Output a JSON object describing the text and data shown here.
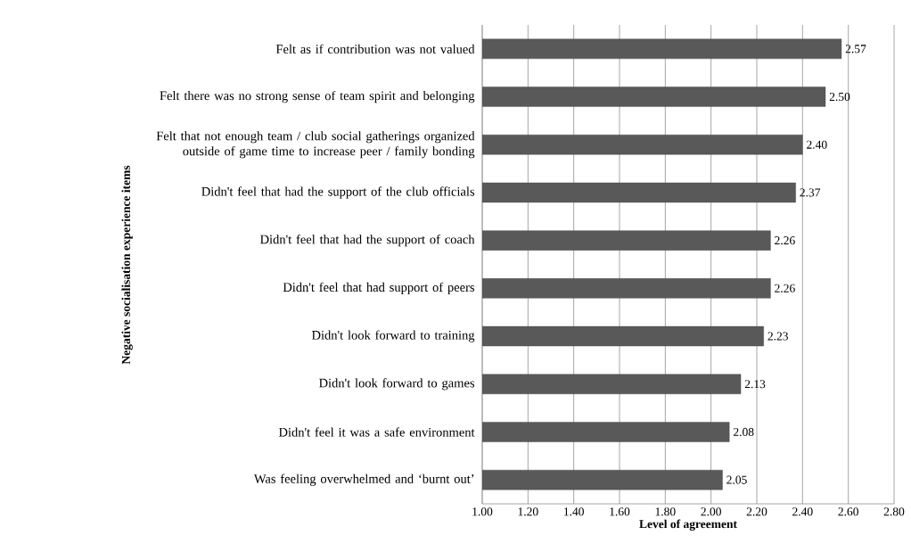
{
  "chart_data": {
    "type": "bar",
    "orientation": "horizontal",
    "categories": [
      "Felt as if contribution was not valued",
      "Felt there was no strong sense of team spirit and belonging",
      "Felt that not enough team / club social gatherings organized outside of game time to increase peer / family bonding",
      "Didn't feel that had the support of the club officials",
      "Didn't feel that had the support of coach",
      "Didn't feel that had support of peers",
      "Didn't look forward to training",
      "Didn't look forward to games",
      "Didn't feel it was a safe environment",
      "Was feeling overwhelmed and ‘burnt out’"
    ],
    "values": [
      2.57,
      2.5,
      2.4,
      2.37,
      2.26,
      2.26,
      2.23,
      2.13,
      2.08,
      2.05
    ],
    "value_labels": [
      "2.57",
      "2.50",
      "2.40",
      "2.37",
      "2.26",
      "2.26",
      "2.23",
      "2.13",
      "2.08",
      "2.05"
    ],
    "color": "#595959",
    "xlim": [
      1,
      2.8
    ],
    "xticks": [
      {
        "value": 1,
        "label": "1.00"
      },
      {
        "value": 1.2,
        "label": "1.20"
      },
      {
        "value": 1.4,
        "label": "1.40"
      },
      {
        "value": 1.6,
        "label": "1.60"
      },
      {
        "value": 1.8,
        "label": "1.80"
      },
      {
        "value": 2,
        "label": "2.00"
      },
      {
        "value": 2.2,
        "label": "2.20"
      },
      {
        "value": 2.4,
        "label": "2.40"
      },
      {
        "value": 2.6,
        "label": "2.60"
      },
      {
        "value": 2.8,
        "label": "2.80"
      }
    ],
    "xlabel": "Level of agreement",
    "ylabel": "Negative socialisation experience items",
    "grid": "x"
  }
}
